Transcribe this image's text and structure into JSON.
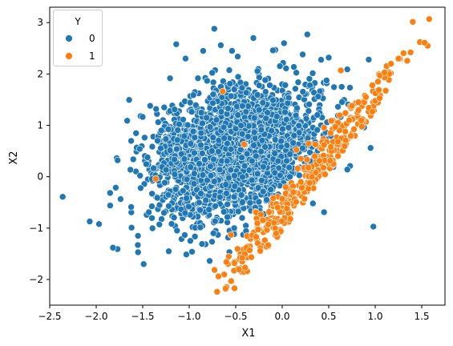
{
  "chart_data": {
    "type": "scatter",
    "xlabel": "X1",
    "ylabel": "X2",
    "xlim": [
      -2.5,
      1.75
    ],
    "ylim": [
      -2.5,
      3.3
    ],
    "xticks": [
      -2.5,
      -2.0,
      -1.5,
      -1.0,
      -0.5,
      0.0,
      0.5,
      1.0,
      1.5
    ],
    "yticks": [
      -2,
      -1,
      0,
      1,
      2,
      3
    ],
    "grid": false,
    "legend": {
      "title": "Y",
      "placement": "top-left"
    },
    "series": [
      {
        "name": "0",
        "color": "#1f77b4",
        "points": [
          [
            -2.36,
            -0.39
          ],
          [
            -2.07,
            -0.87
          ],
          [
            -1.97,
            -0.92
          ],
          [
            -1.85,
            -0.56
          ],
          [
            -1.82,
            -1.38
          ],
          [
            -1.77,
            0.32
          ],
          [
            -1.62,
            -0.99
          ],
          [
            -1.55,
            -1.47
          ],
          [
            -1.49,
            -1.7
          ],
          [
            -1.42,
            1.38
          ],
          [
            -1.4,
            -0.33
          ],
          [
            -1.3,
            0.9
          ],
          [
            -1.22,
            -1.45
          ],
          [
            -1.14,
            2.58
          ],
          [
            -1.04,
            2.3
          ],
          [
            -0.97,
            -1.46
          ],
          [
            -0.85,
            2.45
          ],
          [
            -0.78,
            -1.64
          ],
          [
            -0.73,
            2.88
          ],
          [
            -0.66,
            2.56
          ],
          [
            -0.54,
            2.45
          ],
          [
            -0.45,
            -1.44
          ],
          [
            -0.31,
            2.7
          ],
          [
            -0.2,
            -1.29
          ],
          [
            -0.1,
            2.46
          ],
          [
            0.02,
            2.6
          ],
          [
            0.22,
            2.38
          ],
          [
            0.27,
            2.77
          ],
          [
            0.5,
            2.32
          ],
          [
            0.45,
            -0.69
          ],
          [
            0.64,
            1.75
          ],
          [
            0.7,
            2.09
          ],
          [
            0.93,
            2.28
          ],
          [
            0.98,
            -0.97
          ],
          [
            0.88,
            0.96
          ],
          [
            0.95,
            0.56
          ],
          [
            0.73,
            0.21
          ],
          [
            0.7,
            0.14
          ],
          [
            0.55,
            0.19
          ],
          [
            0.33,
            -0.52
          ]
        ],
        "cloud": {
          "center": [
            -0.5,
            0.5
          ],
          "sd": [
            0.45,
            0.62
          ],
          "corr": 0.25,
          "n": 2400,
          "seed": 7,
          "boundary_slope": 2.3,
          "boundary_y0": -0.45
        }
      },
      {
        "name": "1",
        "color": "#ff7f0e",
        "points": [
          [
            -0.7,
            -2.24
          ],
          [
            -0.6,
            -1.66
          ],
          [
            -0.43,
            -1.65
          ],
          [
            -0.43,
            -1.58
          ],
          [
            -0.35,
            -1.43
          ],
          [
            -0.28,
            -1.17
          ],
          [
            -0.15,
            -0.93
          ],
          [
            -0.05,
            -0.6
          ],
          [
            0.0,
            -0.43
          ],
          [
            0.05,
            -0.62
          ],
          [
            0.12,
            -0.3
          ],
          [
            0.2,
            -0.1
          ],
          [
            0.28,
            0.18
          ],
          [
            0.35,
            0.4
          ],
          [
            0.45,
            0.62
          ],
          [
            0.52,
            0.85
          ],
          [
            0.6,
            1.05
          ],
          [
            0.68,
            1.24
          ],
          [
            0.75,
            1.38
          ],
          [
            0.82,
            1.45
          ],
          [
            0.9,
            1.55
          ],
          [
            0.97,
            1.78
          ],
          [
            1.05,
            1.97
          ],
          [
            1.1,
            2.03
          ],
          [
            1.17,
            2.2
          ],
          [
            1.25,
            2.3
          ],
          [
            1.38,
            2.42
          ],
          [
            1.48,
            2.62
          ],
          [
            1.53,
            2.61
          ],
          [
            1.58,
            3.07
          ],
          [
            -0.64,
            1.66
          ],
          [
            -0.41,
            0.63
          ],
          [
            -1.36,
            -0.04
          ],
          [
            0.63,
            2.07
          ],
          [
            0.2,
            0.35
          ],
          [
            0.32,
            0.0
          ],
          [
            0.4,
            0.31
          ],
          [
            0.15,
            -0.49
          ],
          [
            0.57,
            0.97
          ],
          [
            0.72,
            1.1
          ]
        ],
        "cloud": {
          "center": [
            0.3,
            -0.05
          ],
          "sd": [
            0.5,
            1.1
          ],
          "corr": 0.97,
          "n": 320,
          "seed": 13,
          "boundary_slope": 2.3,
          "boundary_y0": -0.45
        }
      }
    ]
  }
}
